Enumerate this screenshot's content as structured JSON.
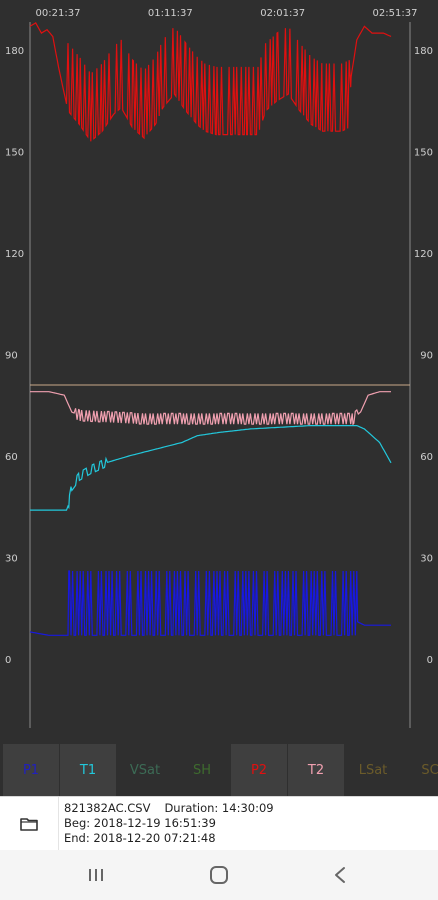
{
  "chart_data": {
    "type": "line",
    "time_labels": [
      "00:21:37",
      "01:11:37",
      "02:01:37",
      "02:51:37"
    ],
    "ylim": [
      -20,
      190
    ],
    "y_ticks": [
      "180",
      "150",
      "120",
      "90",
      "60",
      "30",
      "0"
    ],
    "y_tick_values": [
      180,
      150,
      120,
      90,
      60,
      30,
      0
    ],
    "reference_line": {
      "value": 81,
      "color": "#c9a98a"
    },
    "series": [
      {
        "key": "P2",
        "color": "#e01010",
        "points": [
          [
            0,
            187
          ],
          [
            0.015,
            188
          ],
          [
            0.03,
            185
          ],
          [
            0.045,
            186
          ],
          [
            0.06,
            184
          ],
          [
            0.075,
            175
          ],
          [
            0.1,
            162
          ],
          [
            0.13,
            158
          ],
          [
            0.16,
            153
          ],
          [
            0.19,
            156
          ],
          [
            0.22,
            161
          ],
          [
            0.24,
            163
          ],
          [
            0.27,
            157
          ],
          [
            0.3,
            154
          ],
          [
            0.33,
            158
          ],
          [
            0.35,
            163
          ],
          [
            0.38,
            167
          ],
          [
            0.41,
            162
          ],
          [
            0.44,
            158
          ],
          [
            0.46,
            156
          ],
          [
            0.49,
            155
          ],
          [
            0.53,
            155
          ],
          [
            0.57,
            155
          ],
          [
            0.6,
            155
          ],
          [
            0.62,
            162
          ],
          [
            0.65,
            165
          ],
          [
            0.68,
            167
          ],
          [
            0.71,
            162
          ],
          [
            0.74,
            158
          ],
          [
            0.77,
            156
          ],
          [
            0.8,
            156
          ],
          [
            0.82,
            156
          ],
          [
            0.84,
            157
          ],
          [
            0.845,
            172
          ],
          [
            0.86,
            183
          ],
          [
            0.88,
            187
          ],
          [
            0.9,
            185
          ],
          [
            0.93,
            185
          ],
          [
            0.95,
            184
          ]
        ],
        "spike_range": [
          0.1,
          0.84
        ],
        "spike_count": 70,
        "spike_amplitude": 20
      },
      {
        "key": "T2",
        "color": "#f0a0b0",
        "points": [
          [
            0,
            79
          ],
          [
            0.05,
            79
          ],
          [
            0.09,
            78
          ],
          [
            0.11,
            73
          ],
          [
            0.13,
            72
          ],
          [
            0.3,
            71
          ],
          [
            0.5,
            71
          ],
          [
            0.7,
            71
          ],
          [
            0.85,
            71
          ],
          [
            0.87,
            73
          ],
          [
            0.89,
            78
          ],
          [
            0.92,
            79
          ],
          [
            0.95,
            79
          ]
        ],
        "spike_range": [
          0.12,
          0.86
        ],
        "spike_count": 110,
        "spike_amplitude": 1.6
      },
      {
        "key": "T1",
        "color": "#22c8dc",
        "points": [
          [
            0,
            44
          ],
          [
            0.1,
            44
          ],
          [
            0.102,
            46
          ],
          [
            0.11,
            51
          ],
          [
            0.13,
            54
          ],
          [
            0.16,
            56
          ],
          [
            0.2,
            58
          ],
          [
            0.26,
            60
          ],
          [
            0.33,
            62
          ],
          [
            0.4,
            64
          ],
          [
            0.44,
            66
          ],
          [
            0.5,
            67
          ],
          [
            0.58,
            68
          ],
          [
            0.66,
            68.5
          ],
          [
            0.74,
            69
          ],
          [
            0.82,
            69
          ],
          [
            0.86,
            69
          ],
          [
            0.88,
            68
          ],
          [
            0.92,
            64
          ],
          [
            0.95,
            58
          ]
        ],
        "spike_range": [
          0.1,
          0.2
        ],
        "spike_count": 30,
        "spike_amplitude": 1.2
      },
      {
        "key": "P1",
        "color": "#1818e0",
        "points": [
          [
            0,
            8
          ],
          [
            0.05,
            7
          ],
          [
            0.1,
            7
          ],
          [
            0.102,
            7
          ],
          [
            0.86,
            7
          ],
          [
            0.862,
            11
          ],
          [
            0.88,
            10
          ],
          [
            0.92,
            10
          ],
          [
            0.95,
            10
          ]
        ],
        "spike_range": [
          0.102,
          0.86
        ],
        "spike_count": 80,
        "spike_amplitude": 19
      }
    ]
  },
  "tabs": [
    {
      "label": "P1",
      "color": "#2020c0",
      "selected": true
    },
    {
      "label": "T1",
      "color": "#22c8dc",
      "selected": true
    },
    {
      "label": "VSat",
      "color": "#3c6b55",
      "selected": false
    },
    {
      "label": "SH",
      "color": "#3e6b2e",
      "selected": false
    },
    {
      "label": "P2",
      "color": "#e01010",
      "selected": true
    },
    {
      "label": "T2",
      "color": "#f0a0b0",
      "selected": true
    },
    {
      "label": "LSat",
      "color": "#6b5b2a",
      "selected": false
    },
    {
      "label": "SC",
      "color": "#6b5b2a",
      "selected": false
    }
  ],
  "file": {
    "name": "821382AC.CSV",
    "duration": "Duration: 14:30:09",
    "begin": "Beg: 2018-12-19 16:51:39",
    "end": "End: 2018-12-20 07:21:48"
  },
  "icons": {
    "folder": "folder-icon",
    "recent_apps": "recent-apps-icon",
    "home": "home-icon",
    "back": "back-icon"
  }
}
